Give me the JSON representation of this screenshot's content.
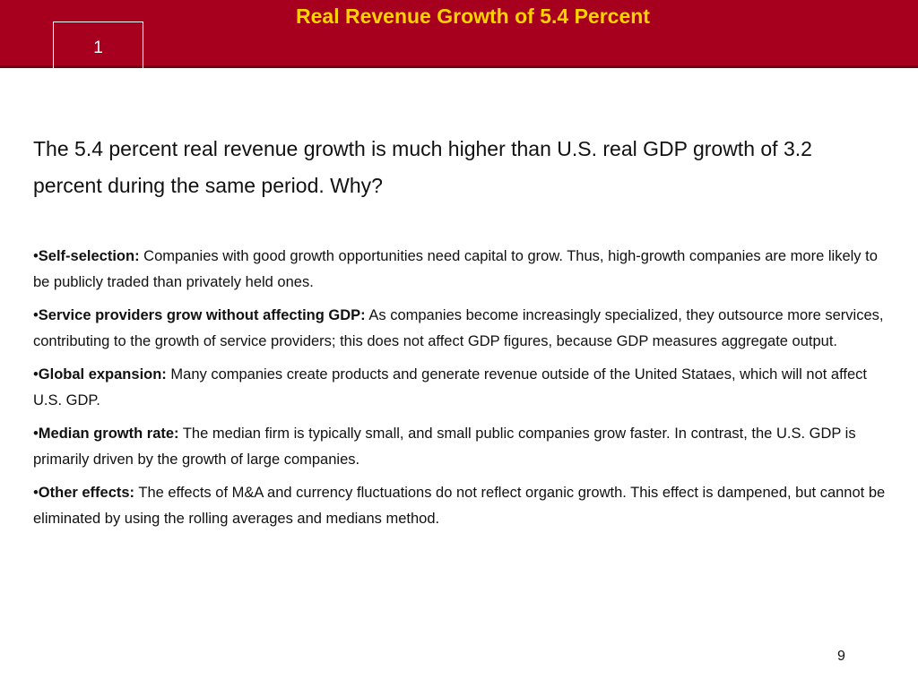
{
  "header": {
    "title": "Real Revenue Growth of 5.4 Percent",
    "section_number": "1"
  },
  "intro_text": "The 5.4 percent real revenue growth is much higher than U.S. real GDP growth of 3.2 percent during the same period. Why?",
  "bullets": [
    {
      "marker": "•",
      "label": "Self-selection:",
      "text": "Companies with good growth opportunities need capital to grow. Thus, high-growth companies are more likely to be publicly traded than privately held ones."
    },
    {
      "marker": "•",
      "label": "Service providers grow without affecting GDP:",
      "text": "As companies become increasingly specialized, they outsource more services, contributing to the growth of service providers; this does not affect GDP figures, because GDP measures aggregate output."
    },
    {
      "marker": "•",
      "label": "Global expansion:",
      "text": "Many companies create products and generate revenue outside of the United Stataes, which will not affect U.S. GDP."
    },
    {
      "marker": "•",
      "label": "Median growth rate:",
      "text": "The median firm is typically small, and small public companies grow faster. In contrast, the U.S. GDP is primarily driven by the growth of large companies."
    },
    {
      "marker": "•",
      "label": "Other effects:",
      "text": "The effects of M&A and currency fluctuations do not reflect organic growth. This effect is dampened, but cannot be eliminated by using the rolling averages and medians method."
    }
  ],
  "page_number": "9",
  "colors": {
    "header_background": "#a6001e",
    "title_color": "#ffd200",
    "body_text": "#111111"
  }
}
